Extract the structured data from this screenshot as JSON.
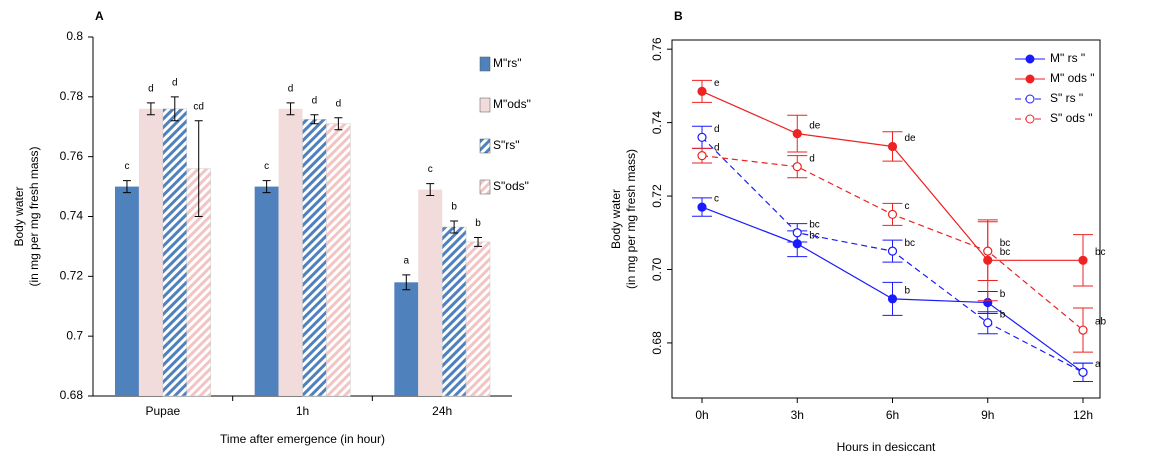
{
  "chart_data": [
    {
      "type": "bar",
      "title": "A",
      "xlabel": "Time after emergence (in hour)",
      "ylabel": [
        "Body water",
        "(in mg per mg fresh mass)"
      ],
      "categories": [
        "Pupae",
        "1h",
        "24h"
      ],
      "ylim": [
        0.68,
        0.8
      ],
      "yticks": [
        0.68,
        0.7,
        0.72,
        0.74,
        0.76,
        0.78,
        0.8
      ],
      "series": [
        {
          "name": "M\"rs\"",
          "color": "#4f81bd",
          "hatch": false,
          "label_color": "#3333cc",
          "values": [
            0.75,
            0.75,
            0.718
          ],
          "errors": [
            0.002,
            0.002,
            0.0025
          ],
          "letters": [
            "c",
            "c",
            "a"
          ]
        },
        {
          "name": "M\"ods\"",
          "color": "#f2dcdb",
          "hatch": false,
          "label_color": "#e03030",
          "values": [
            0.776,
            0.776,
            0.749
          ],
          "errors": [
            0.002,
            0.002,
            0.002
          ],
          "letters": [
            "d",
            "d",
            "c"
          ]
        },
        {
          "name": "S\"rs\"",
          "color": "#4f81bd",
          "hatch": true,
          "label_color": "#3333cc",
          "values": [
            0.776,
            0.7725,
            0.7365
          ],
          "errors": [
            0.004,
            0.0015,
            0.002
          ],
          "letters": [
            "d",
            "d",
            "b"
          ]
        },
        {
          "name": "S\"ods\"",
          "color": "#f2c4c4",
          "hatch": true,
          "label_color": "#e03030",
          "values": [
            0.756,
            0.771,
            0.7315
          ],
          "errors": [
            0.016,
            0.002,
            0.0015
          ],
          "letters": [
            "cd",
            "d",
            "b"
          ]
        }
      ]
    },
    {
      "type": "line",
      "title": "B",
      "xlabel": "Hours in desiccant",
      "ylabel": [
        "Body water",
        "(in mg per mg fresh mass)"
      ],
      "categories": [
        "0h",
        "3h",
        "6h",
        "9h",
        "12h"
      ],
      "ylim": [
        0.665,
        0.7625
      ],
      "yticks": [
        0.68,
        {
          "value": 0.7,
          "label": "0.70"
        },
        0.72,
        0.74,
        0.76
      ],
      "series": [
        {
          "name": "M\" rs \"",
          "color": "#1a1aff",
          "dash": false,
          "marker": "filled",
          "values": [
            0.717,
            0.707,
            0.692,
            0.691,
            0.672
          ],
          "errors": [
            0.0025,
            0.0035,
            0.0045,
            0.003,
            0.0025
          ],
          "letters": [
            "c",
            "bc",
            "b",
            "b",
            "a"
          ]
        },
        {
          "name": "M\" ods \"",
          "color": "#ee2222",
          "dash": false,
          "marker": "filled",
          "values": [
            0.7485,
            0.737,
            0.7335,
            0.7025,
            0.7025
          ],
          "errors": [
            0.003,
            0.005,
            0.004,
            0.011,
            0.007
          ],
          "letters": [
            "e",
            "de",
            "de",
            "bc",
            "bc"
          ]
        },
        {
          "name": "S\" rs \"",
          "color": "#1a1aff",
          "dash": true,
          "marker": "open",
          "values": [
            0.736,
            0.71,
            0.705,
            0.6855,
            0.672
          ],
          "errors": [
            0.003,
            0.0025,
            0.003,
            0.003,
            0.0025
          ],
          "letters": [
            "d",
            "bc",
            "bc",
            "b",
            null
          ]
        },
        {
          "name": "S\" ods \"",
          "color": "#ee2222",
          "dash": true,
          "marker": "open",
          "values": [
            0.731,
            0.728,
            0.715,
            0.705,
            0.6835
          ],
          "errors": [
            0.002,
            0.003,
            0.003,
            0.008,
            0.006
          ],
          "letters": [
            "d",
            "d",
            "c",
            "bc",
            "ab"
          ]
        }
      ]
    }
  ]
}
